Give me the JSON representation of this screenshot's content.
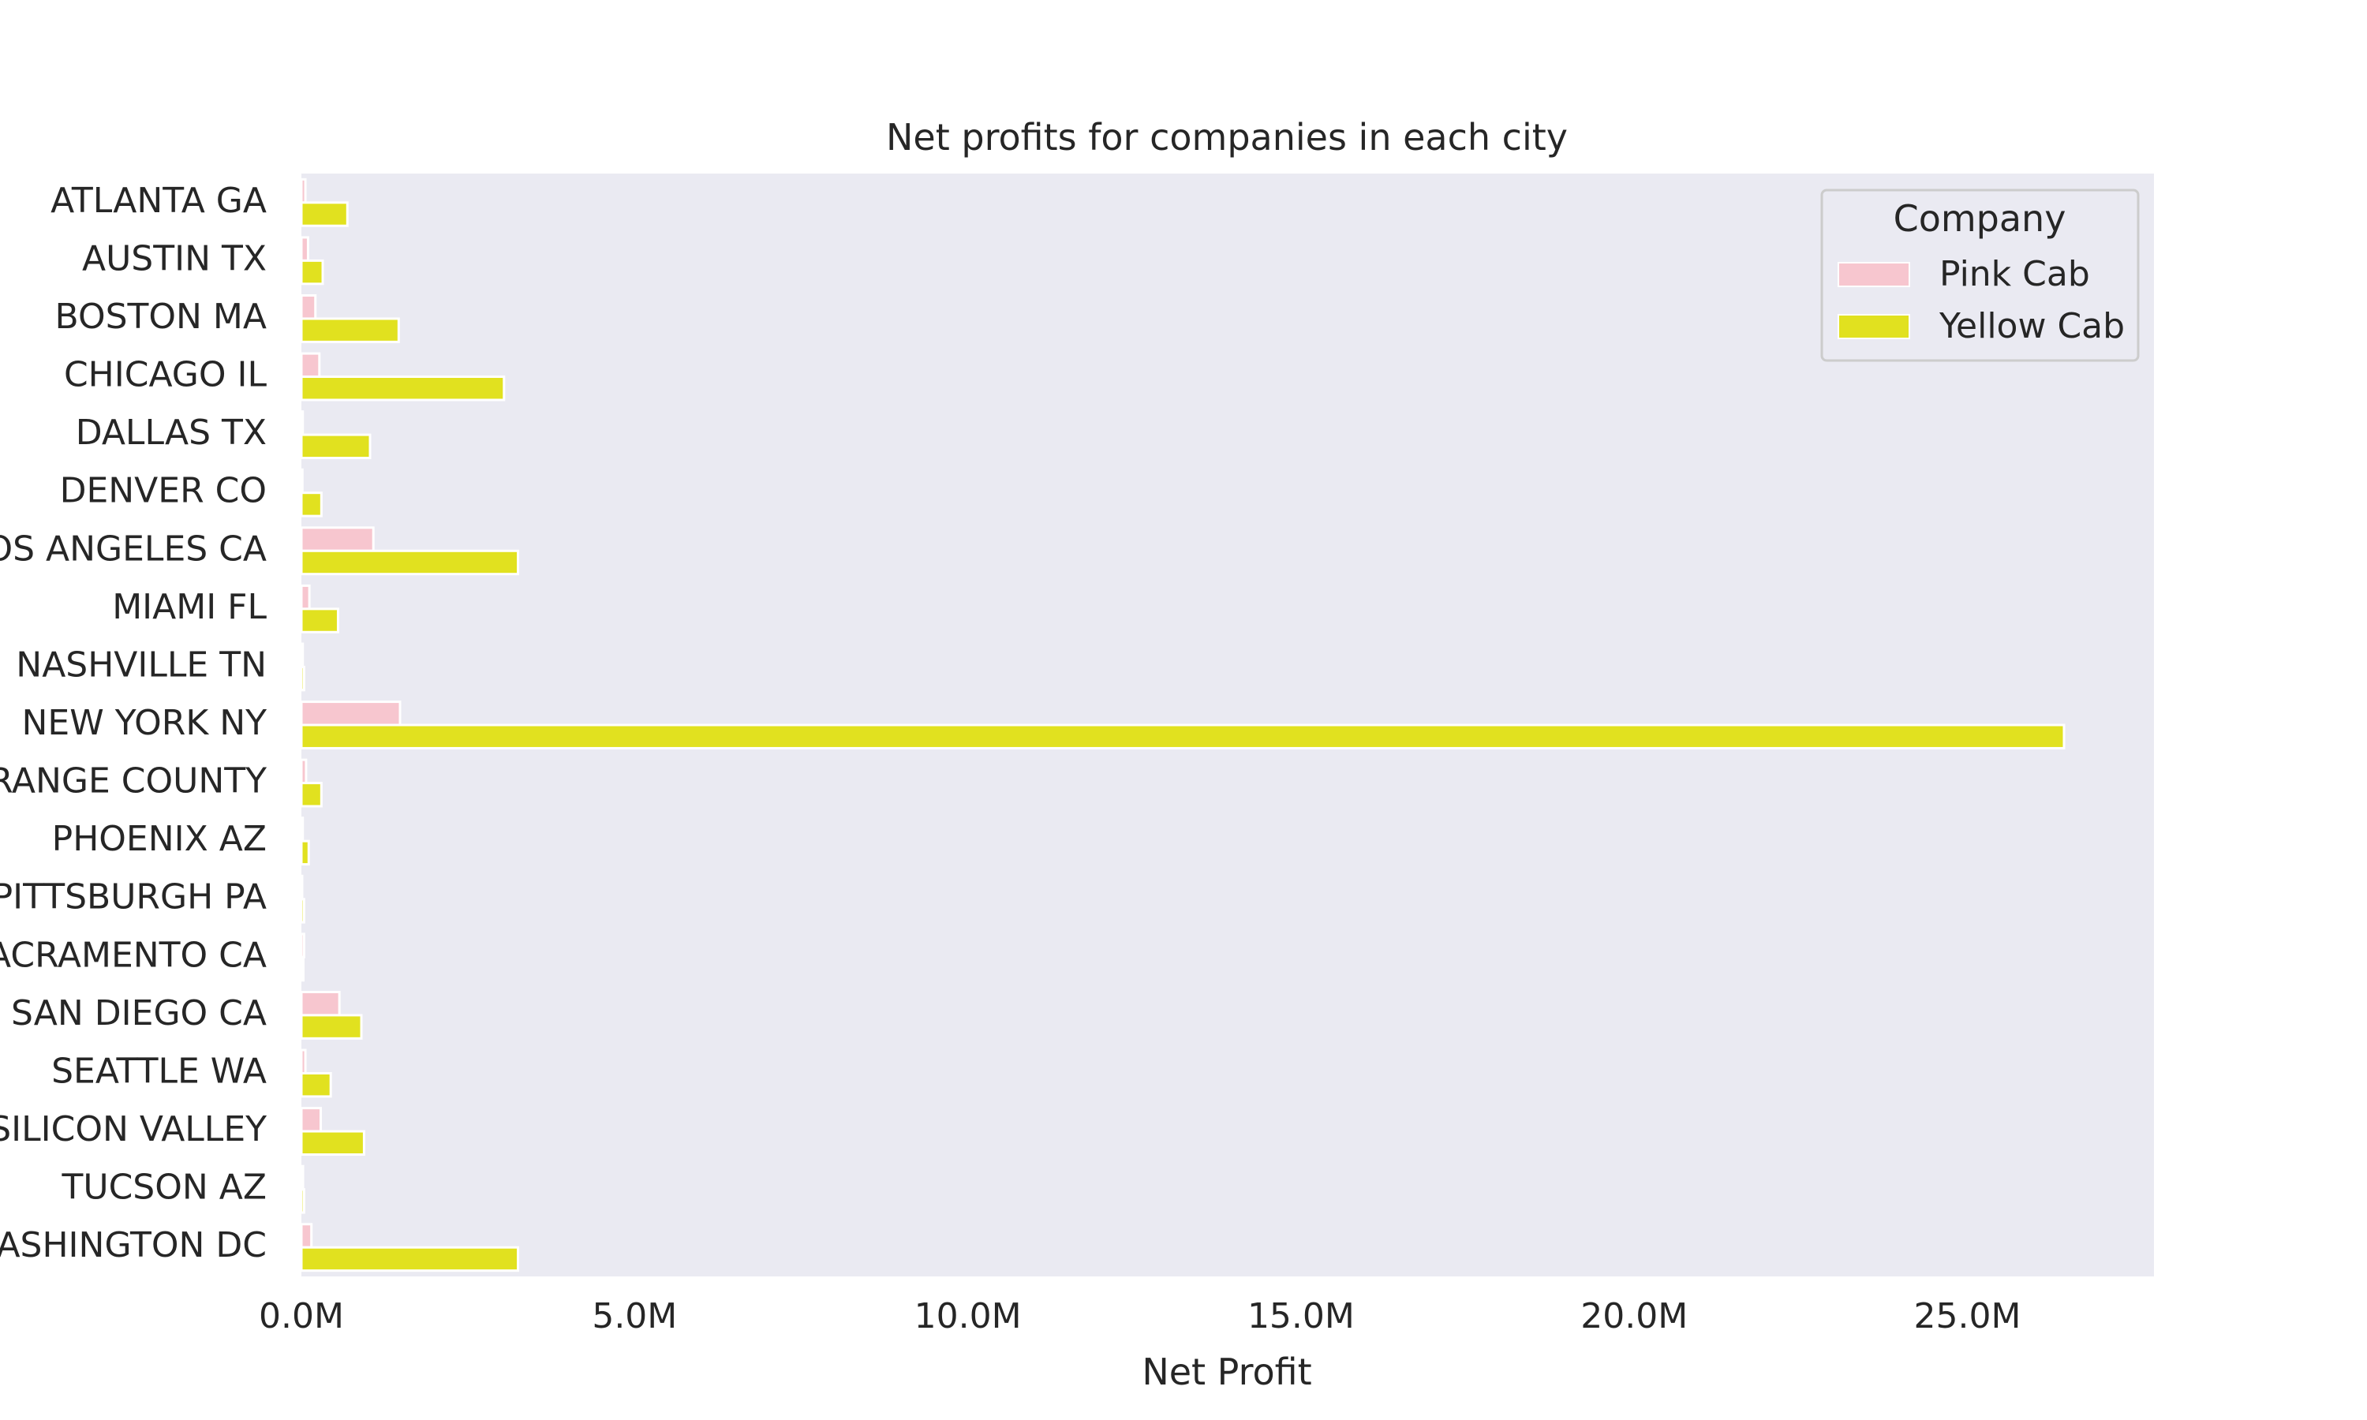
{
  "chart_data": {
    "type": "bar",
    "orientation": "horizontal",
    "title": "Net profits for companies in each city",
    "xlabel": "Net Profit",
    "ylabel": "",
    "xlim": [
      0,
      27800000
    ],
    "x_ticks": [
      0,
      5000000,
      10000000,
      15000000,
      20000000,
      25000000
    ],
    "x_tick_labels": [
      "0.0M",
      "5.0M",
      "10.0M",
      "15.0M",
      "20.0M",
      "25.0M"
    ],
    "grid": false,
    "legend": {
      "title": "Company",
      "placement": "top-right"
    },
    "categories": [
      "ATLANTA GA",
      "AUSTIN TX",
      "BOSTON MA",
      "CHICAGO IL",
      "DALLAS TX",
      "DENVER CO",
      "LOS ANGELES CA",
      "MIAMI FL",
      "NASHVILLE TN",
      "NEW YORK NY",
      "ORANGE COUNTY",
      "PHOENIX AZ",
      "PITTSBURGH PA",
      "SACRAMENTO CA",
      "SAN DIEGO CA",
      "SEATTLE WA",
      "SILICON VALLEY",
      "TUCSON AZ",
      "WASHINGTON DC"
    ],
    "series": [
      {
        "name": "Pink Cab",
        "color": "#f7c6cf",
        "values": [
          60000,
          100000,
          210000,
          270000,
          20000,
          15000,
          1080000,
          120000,
          20000,
          1480000,
          70000,
          20000,
          10000,
          40000,
          570000,
          60000,
          290000,
          25000,
          150000
        ]
      },
      {
        "name": "Yellow Cab",
        "color": "#e1e11f",
        "values": [
          690000,
          320000,
          1460000,
          3040000,
          1030000,
          300000,
          3250000,
          550000,
          40000,
          26450000,
          300000,
          110000,
          40000,
          30000,
          900000,
          440000,
          940000,
          40000,
          3250000
        ]
      }
    ]
  }
}
